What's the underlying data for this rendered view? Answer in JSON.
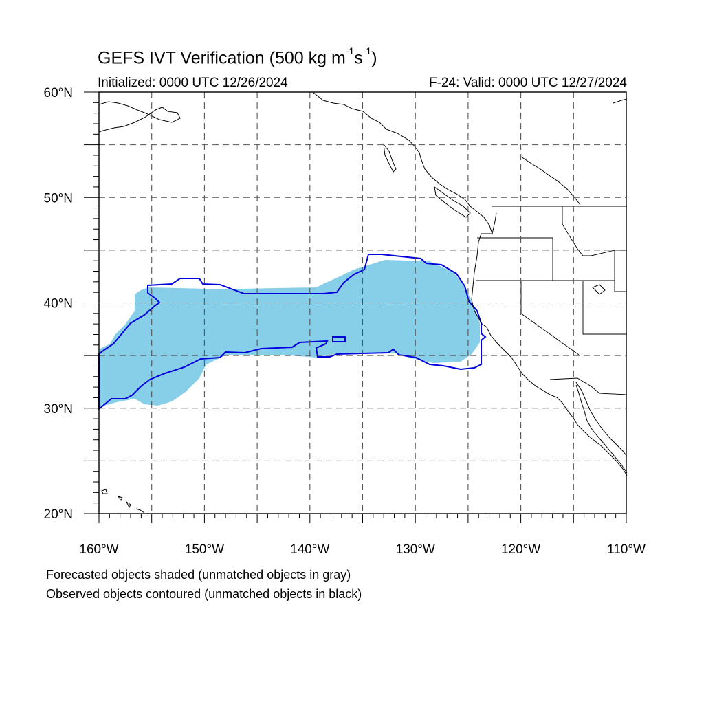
{
  "title": {
    "main": "GEFS IVT Verification (500 kg m",
    "exp1": "-1",
    "mid": "s",
    "exp2": "-1",
    "end": ")"
  },
  "subtitle": {
    "initialized": "Initialized: 0000 UTC 12/26/2024",
    "valid": "F-24: Valid: 0000 UTC 12/27/2024"
  },
  "axes": {
    "lat_labels": [
      "20°N",
      "30°N",
      "40°N",
      "50°N",
      "60°N"
    ],
    "lon_labels": [
      "160°W",
      "150°W",
      "140°W",
      "130°W",
      "120°W",
      "110°W"
    ]
  },
  "caption": {
    "line1": "Forecasted objects shaded (unmatched objects in gray)",
    "line2": "Observed objects contoured (unmatched objects in black)"
  },
  "colors": {
    "forecast_fill": "#87CEE8",
    "observed_contour": "#0000DD",
    "coastline": "#000000",
    "grid": "#555555"
  }
}
